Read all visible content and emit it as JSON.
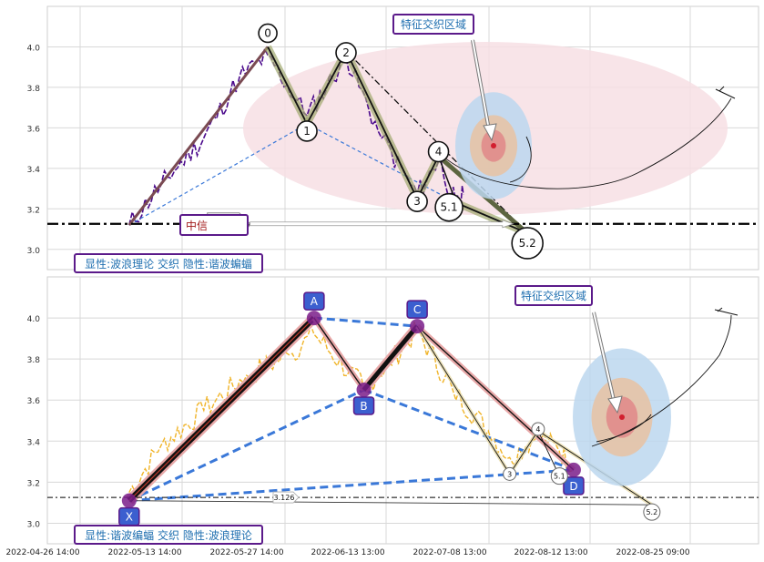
{
  "chart_data": [
    {
      "type": "line",
      "panel": "top",
      "ylim": [
        2.9,
        4.2
      ],
      "yticks": [
        "3.0",
        "3.2",
        "3.4",
        "3.6",
        "3.8",
        "4.0"
      ],
      "grid": true,
      "horizontal_line": {
        "value": 3.126,
        "label": "3.126"
      },
      "zone_label": "特征交织区域",
      "box_label": "显性:波浪理论 交织 隐性:谐波蝙蝠",
      "mid_label": "中信",
      "points": [
        {
          "label": "0",
          "x": 0.31,
          "y": 4.0
        },
        {
          "label": "1",
          "x": 0.365,
          "y": 3.62
        },
        {
          "label": "2",
          "x": 0.42,
          "y": 3.98
        },
        {
          "label": "3",
          "x": 0.52,
          "y": 3.25
        },
        {
          "label": "4",
          "x": 0.55,
          "y": 3.46
        },
        {
          "label": "5.1",
          "x": 0.575,
          "y": 3.23
        },
        {
          "label": "5.2",
          "x": 0.675,
          "y": 3.08
        }
      ],
      "start": {
        "x": 0.115,
        "y": 3.12
      }
    },
    {
      "type": "line",
      "panel": "bottom",
      "ylim": [
        2.9,
        4.2
      ],
      "yticks": [
        "3.0",
        "3.2",
        "3.4",
        "3.6",
        "3.8",
        "4.0"
      ],
      "grid": true,
      "horizontal_line": {
        "value": 3.126,
        "label": "3.126"
      },
      "zone_label": "特征交织区域",
      "box_label": "显性:谐波编蝠 交织 隐性:波浪理论",
      "points": [
        {
          "label": "X",
          "x": 0.115,
          "y": 3.11
        },
        {
          "label": "A",
          "x": 0.375,
          "y": 4.0
        },
        {
          "label": "B",
          "x": 0.445,
          "y": 3.65
        },
        {
          "label": "C",
          "x": 0.52,
          "y": 3.96
        },
        {
          "label": "D",
          "x": 0.74,
          "y": 3.26
        }
      ],
      "wave_points": [
        {
          "label": "3",
          "x": 0.65,
          "y": 3.24
        },
        {
          "label": "4",
          "x": 0.69,
          "y": 3.45
        },
        {
          "label": "5.1",
          "x": 0.72,
          "y": 3.23
        },
        {
          "label": "5.2",
          "x": 0.85,
          "y": 3.09
        }
      ]
    }
  ],
  "x_axis": {
    "tick_labels": [
      "2022-04-26 14:00",
      "2022-05-13 14:00",
      "2022-05-27 14:00",
      "2022-06-13 13:00",
      "2022-07-08 13:00",
      "2022-08-12 13:00",
      "2022-08-25 09:00"
    ]
  },
  "colors": {
    "grid": "#d8d8d8",
    "price_top": "#4b0a8c",
    "price_bottom": "#f0b429",
    "dash_blue": "#3a78d8",
    "label_box_border": "#5b1a8a",
    "label_text": "#1f6fb0",
    "ellipse_fill": "#f7dfe4",
    "zone_outer": "#bcd7ef",
    "zone_mid": "#e6c3a6",
    "zone_inner": "#e08b8b",
    "point_fill": "#3b5fcf"
  }
}
